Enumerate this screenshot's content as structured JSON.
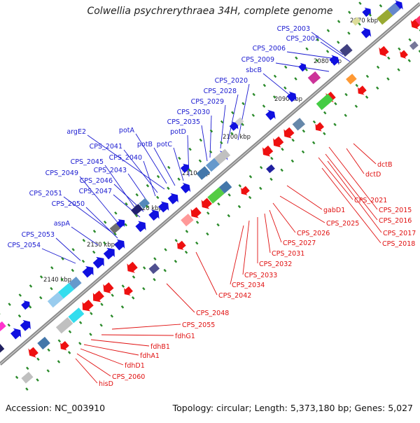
{
  "title": "Colwellia psychrerythraea 34H, complete genome",
  "footer": {
    "accession": "Accession: NC_003910",
    "summary": "Topology: circular; Length: 5,373,180 bp; Genes: 5,027"
  },
  "colors": {
    "forward": "#1010e0",
    "reverse": "#ee1010",
    "backbone": "#808080",
    "tick": "#2a8a2a"
  },
  "ticks": [
    "2070 kbp",
    "2080 kbp",
    "2090 kbp",
    "2100 kbp",
    "2110 kbp",
    "2120 kbp",
    "2130 kbp",
    "2140 kbp"
  ],
  "upper_labels": [
    "CPS_2003",
    "CPS_2005",
    "CPS_2006",
    "CPS_2009",
    "sbcB",
    "CPS_2020",
    "CPS_2028",
    "CPS_2029",
    "CPS_2030",
    "CPS_2035",
    "potD",
    "potC",
    "potB",
    "potA",
    "argE2",
    "CPS_2041",
    "CPS_2040",
    "CPS_2045",
    "CPS_2043",
    "CPS_2049",
    "CPS_2046",
    "CPS_2047",
    "CPS_2051",
    "CPS_2050",
    "aspA",
    "CPS_2053",
    "CPS_2054"
  ],
  "lower_labels": [
    "dctB",
    "dctD",
    "CPS_2021",
    "CPS_2015",
    "CPS_2016",
    "CPS_2017",
    "CPS_2018",
    "gabD1",
    "CPS_2025",
    "CPS_2026",
    "CPS_2027",
    "CPS_2031",
    "CPS_2032",
    "CPS_2033",
    "CPS_2034",
    "CPS_2042",
    "CPS_2048",
    "CPS_2055",
    "fdhG1",
    "fdhB1",
    "fdhA1",
    "fdhD1",
    "CPS_2060",
    "hisD"
  ]
}
